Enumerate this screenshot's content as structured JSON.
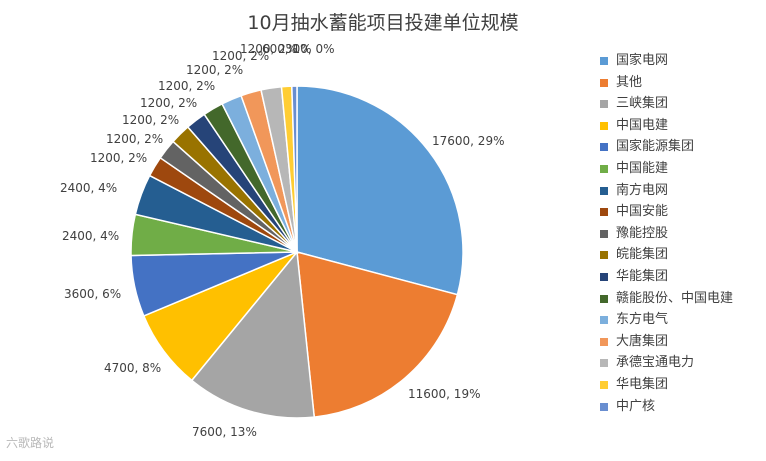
{
  "chart_data": {
    "type": "pie",
    "title": "10月抽水蓄能项目投建单位规模",
    "legend_position": "right",
    "slices": [
      {
        "name": "国家电网",
        "value": 17600,
        "label": "17600, 29%",
        "color": "#5B9BD5"
      },
      {
        "name": "其他",
        "value": 11600,
        "label": "11600, 19%",
        "color": "#ED7D31"
      },
      {
        "name": "三峡集团",
        "value": 7600,
        "label": "7600, 13%",
        "color": "#A5A5A5"
      },
      {
        "name": "中国电建",
        "value": 4700,
        "label": "4700, 8%",
        "color": "#FFC000"
      },
      {
        "name": "国家能源集团",
        "value": 3600,
        "label": "3600, 6%",
        "color": "#4472C4"
      },
      {
        "name": "中国能建",
        "value": 2400,
        "label": "2400, 4%",
        "color": "#70AD47"
      },
      {
        "name": "南方电网",
        "value": 2400,
        "label": "2400, 4%",
        "color": "#255E91"
      },
      {
        "name": "中国安能",
        "value": 1200,
        "label": "1200, 2%",
        "color": "#9E480E"
      },
      {
        "name": "豫能控股",
        "value": 1200,
        "label": "1200, 2%",
        "color": "#636363"
      },
      {
        "name": "皖能集团",
        "value": 1200,
        "label": "1200, 2%",
        "color": "#997300"
      },
      {
        "name": "华能集团",
        "value": 1200,
        "label": "1200, 2%",
        "color": "#264478"
      },
      {
        "name": "赣能股份、中国电建",
        "value": 1200,
        "label": "1200, 2%",
        "color": "#43682B"
      },
      {
        "name": "东方电气",
        "value": 1200,
        "label": "1200, 2%",
        "color": "#7CAFDD"
      },
      {
        "name": "大唐集团",
        "value": 1200,
        "label": "1200, 2%",
        "color": "#F1975A"
      },
      {
        "name": "承德宝通电力",
        "value": 1200,
        "label": "1200, 2%",
        "color": "#B7B7B7"
      },
      {
        "name": "华电集团",
        "value": 600,
        "label": "600, 1%",
        "color": "#FFCD33"
      },
      {
        "name": "中广核",
        "value": 300,
        "label": "300, 0%",
        "color": "#698ED0"
      }
    ]
  },
  "watermark": {
    "text": "六歌路说"
  }
}
